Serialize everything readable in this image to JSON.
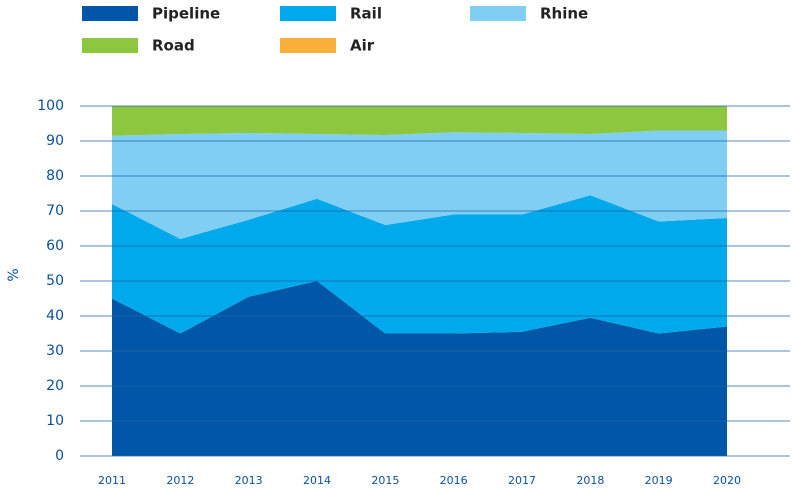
{
  "chart_data": {
    "type": "stacked_area",
    "y_label": "%",
    "categories": [
      "2011",
      "2012",
      "2013",
      "2014",
      "2015",
      "2016",
      "2017",
      "2018",
      "2019",
      "2020"
    ],
    "series": [
      {
        "name": "Pipeline",
        "color": "#0057a8",
        "values": [
          45,
          35,
          45.5,
          50,
          35,
          35,
          35.5,
          39.5,
          35,
          37
        ]
      },
      {
        "name": "Rail",
        "color": "#00a9ec",
        "values": [
          27,
          27,
          22,
          23.5,
          31,
          34,
          33.5,
          35,
          32,
          31
        ]
      },
      {
        "name": "Rhine",
        "color": "#80cef3",
        "values": [
          19.5,
          30,
          24.8,
          18.5,
          25.7,
          23.5,
          23.3,
          17.5,
          26,
          25
        ]
      },
      {
        "name": "Road",
        "color": "#8dc63f",
        "values": [
          8.5,
          8,
          7.7,
          8,
          8.3,
          7.5,
          7.7,
          8,
          7,
          7
        ]
      },
      {
        "name": "Air",
        "color": "#fbb03b",
        "values": [
          0,
          0,
          0,
          0,
          0,
          0,
          0,
          0,
          0,
          0
        ]
      }
    ],
    "ylim": [
      0,
      100
    ],
    "yticks": [
      0,
      10,
      20,
      30,
      40,
      50,
      60,
      70,
      80,
      90,
      100
    ],
    "grid": true
  }
}
